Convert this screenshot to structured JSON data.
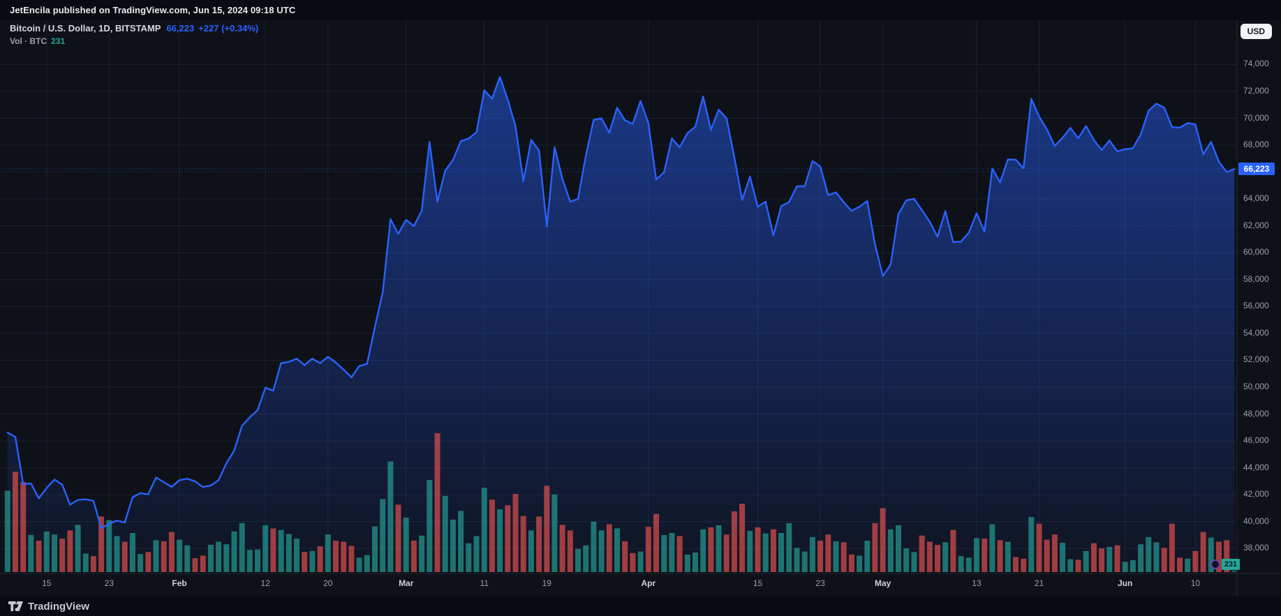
{
  "attribution_bar": {
    "text": "JetEncila published on TradingView.com, Jun 15, 2024 09:18 UTC"
  },
  "header": {
    "symbol_title": "Bitcoin / U.S. Dollar, 1D, BITSTAMP",
    "last_price": "66,223",
    "change": "+227 (+0.34%)",
    "volume_label": "Vol · BTC",
    "volume_value": "231"
  },
  "axis": {
    "currency_button": "USD",
    "price_badge": "66,223",
    "volume_badge": "231"
  },
  "footer": {
    "brand": "TradingView"
  },
  "colors": {
    "accent": "#2962ff",
    "vol_up": "#26a69a",
    "vol_down": "#ef5350",
    "chart_bg": "#0e1118",
    "bar_bg": "#090b10",
    "grid": "#1c2230",
    "separator": "#232836",
    "axis_text": "#9ba1ab",
    "title_text": "#d5d8dd",
    "vol_badge_text": "#06231f",
    "bubble_ring": "#6f42c1"
  },
  "chart_data": {
    "type": "line",
    "title": "Bitcoin / U.S. Dollar, 1D, BITSTAMP",
    "xlabel": "date",
    "ylabel": "USD",
    "ylim": [
      36100,
      77300
    ],
    "grid": true,
    "legend_position": "none",
    "y_ticks": [
      74000,
      72000,
      70000,
      68000,
      66000,
      64000,
      62000,
      60000,
      58000,
      56000,
      54000,
      52000,
      50000,
      48000,
      46000,
      44000,
      42000,
      40000,
      38000
    ],
    "x_ticks": [
      {
        "label": "15",
        "index": 5
      },
      {
        "label": "23",
        "index": 13
      },
      {
        "label": "Feb",
        "index": 22
      },
      {
        "label": "12",
        "index": 33
      },
      {
        "label": "20",
        "index": 41
      },
      {
        "label": "Mar",
        "index": 51
      },
      {
        "label": "11",
        "index": 61
      },
      {
        "label": "19",
        "index": 69
      },
      {
        "label": "Apr",
        "index": 82
      },
      {
        "label": "15",
        "index": 96
      },
      {
        "label": "23",
        "index": 104
      },
      {
        "label": "May",
        "index": 112
      },
      {
        "label": "13",
        "index": 124
      },
      {
        "label": "21",
        "index": 132
      },
      {
        "label": "Jun",
        "index": 143
      },
      {
        "label": "10",
        "index": 152
      }
    ],
    "dates": [
      "2024-01-10",
      "2024-01-11",
      "2024-01-12",
      "2024-01-13",
      "2024-01-14",
      "2024-01-15",
      "2024-01-16",
      "2024-01-17",
      "2024-01-18",
      "2024-01-19",
      "2024-01-20",
      "2024-01-21",
      "2024-01-22",
      "2024-01-23",
      "2024-01-24",
      "2024-01-25",
      "2024-01-26",
      "2024-01-27",
      "2024-01-28",
      "2024-01-29",
      "2024-01-30",
      "2024-01-31",
      "2024-02-01",
      "2024-02-02",
      "2024-02-03",
      "2024-02-04",
      "2024-02-05",
      "2024-02-06",
      "2024-02-07",
      "2024-02-08",
      "2024-02-09",
      "2024-02-10",
      "2024-02-11",
      "2024-02-12",
      "2024-02-13",
      "2024-02-14",
      "2024-02-15",
      "2024-02-16",
      "2024-02-17",
      "2024-02-18",
      "2024-02-19",
      "2024-02-20",
      "2024-02-21",
      "2024-02-22",
      "2024-02-23",
      "2024-02-24",
      "2024-02-25",
      "2024-02-26",
      "2024-02-27",
      "2024-02-28",
      "2024-02-29",
      "2024-03-01",
      "2024-03-02",
      "2024-03-03",
      "2024-03-04",
      "2024-03-05",
      "2024-03-06",
      "2024-03-07",
      "2024-03-08",
      "2024-03-09",
      "2024-03-10",
      "2024-03-11",
      "2024-03-12",
      "2024-03-13",
      "2024-03-14",
      "2024-03-15",
      "2024-03-16",
      "2024-03-17",
      "2024-03-18",
      "2024-03-19",
      "2024-03-20",
      "2024-03-21",
      "2024-03-22",
      "2024-03-23",
      "2024-03-24",
      "2024-03-25",
      "2024-03-26",
      "2024-03-27",
      "2024-03-28",
      "2024-03-29",
      "2024-03-30",
      "2024-03-31",
      "2024-04-01",
      "2024-04-02",
      "2024-04-03",
      "2024-04-04",
      "2024-04-05",
      "2024-04-06",
      "2024-04-07",
      "2024-04-08",
      "2024-04-09",
      "2024-04-10",
      "2024-04-11",
      "2024-04-12",
      "2024-04-13",
      "2024-04-14",
      "2024-04-15",
      "2024-04-16",
      "2024-04-17",
      "2024-04-18",
      "2024-04-19",
      "2024-04-20",
      "2024-04-21",
      "2024-04-22",
      "2024-04-23",
      "2024-04-24",
      "2024-04-25",
      "2024-04-26",
      "2024-04-27",
      "2024-04-28",
      "2024-04-29",
      "2024-04-30",
      "2024-05-01",
      "2024-05-02",
      "2024-05-03",
      "2024-05-04",
      "2024-05-05",
      "2024-05-06",
      "2024-05-07",
      "2024-05-08",
      "2024-05-09",
      "2024-05-10",
      "2024-05-11",
      "2024-05-12",
      "2024-05-13",
      "2024-05-14",
      "2024-05-15",
      "2024-05-16",
      "2024-05-17",
      "2024-05-18",
      "2024-05-19",
      "2024-05-20",
      "2024-05-21",
      "2024-05-22",
      "2024-05-23",
      "2024-05-24",
      "2024-05-25",
      "2024-05-26",
      "2024-05-27",
      "2024-05-28",
      "2024-05-29",
      "2024-05-30",
      "2024-05-31",
      "2024-06-01",
      "2024-06-02",
      "2024-06-03",
      "2024-06-04",
      "2024-06-05",
      "2024-06-06",
      "2024-06-07",
      "2024-06-08",
      "2024-06-09",
      "2024-06-10",
      "2024-06-11",
      "2024-06-12",
      "2024-06-13",
      "2024-06-14",
      "2024-06-15"
    ],
    "series": [
      {
        "name": "BTC/USD close",
        "type": "line",
        "values": [
          46627,
          46303,
          42782,
          42842,
          41732,
          42500,
          43132,
          42742,
          41261,
          41618,
          41665,
          41545,
          39507,
          39845,
          40077,
          39936,
          41811,
          42120,
          42031,
          43288,
          42941,
          42580,
          43082,
          43194,
          42995,
          42575,
          42687,
          43084,
          44339,
          45288,
          47132,
          47751,
          48294,
          49958,
          49742,
          51795,
          51880,
          52124,
          51642,
          52122,
          51779,
          52268,
          51839,
          51304,
          50731,
          51571,
          51733,
          54476,
          57037,
          62504,
          61403,
          62440,
          61977,
          63113,
          68245,
          63801,
          66082,
          66902,
          68300,
          68498,
          68955,
          72078,
          71452,
          73072,
          71388,
          69403,
          65315,
          68390,
          67609,
          61937,
          67840,
          65501,
          63796,
          63990,
          67209,
          69880,
          69988,
          68928,
          70780,
          69850,
          69582,
          71280,
          69649,
          65446,
          65980,
          68508,
          67837,
          68896,
          69360,
          71620,
          69140,
          70631,
          70006,
          67116,
          63924,
          65661,
          63419,
          63793,
          61277,
          63470,
          63766,
          64940,
          64941,
          66819,
          66410,
          64276,
          64485,
          63755,
          63115,
          63419,
          63841,
          60637,
          58254,
          59123,
          62889,
          63892,
          64012,
          63165,
          62312,
          61187,
          63094,
          60792,
          60825,
          61483,
          62940,
          61577,
          66267,
          65231,
          66940,
          66916,
          66278,
          71446,
          70136,
          69163,
          67939,
          68549,
          69285,
          68518,
          69424,
          68384,
          67635,
          68350,
          67540,
          67707,
          67766,
          68804,
          70567,
          71082,
          70790,
          69344,
          69302,
          69648,
          69540,
          67315,
          68244,
          66766,
          65996,
          66223
        ]
      },
      {
        "name": "Volume BTC",
        "type": "bar",
        "values": [
          15800,
          19500,
          17500,
          7200,
          6100,
          7900,
          7300,
          6500,
          8100,
          9200,
          3600,
          3100,
          10800,
          10100,
          7000,
          5900,
          7600,
          3500,
          3900,
          6200,
          6000,
          7800,
          6300,
          5200,
          2700,
          3200,
          5300,
          5900,
          5400,
          7900,
          9500,
          4300,
          4400,
          9100,
          8500,
          8200,
          7400,
          6500,
          3900,
          4100,
          5000,
          7300,
          6100,
          5900,
          5100,
          2800,
          3300,
          8900,
          14200,
          21500,
          13100,
          10600,
          6100,
          7100,
          17900,
          27000,
          14800,
          10200,
          11900,
          5600,
          7000,
          16400,
          14100,
          12200,
          13000,
          15200,
          10900,
          8100,
          10800,
          16800,
          15100,
          9200,
          8100,
          4500,
          5200,
          9800,
          8100,
          9300,
          8500,
          6000,
          3700,
          4000,
          8800,
          11300,
          7200,
          7600,
          7000,
          3400,
          3800,
          8300,
          8700,
          9100,
          7300,
          11800,
          13300,
          8000,
          8700,
          7500,
          8300,
          7600,
          9500,
          4700,
          4000,
          6800,
          6100,
          7300,
          6000,
          5800,
          3400,
          3200,
          6100,
          9500,
          12400,
          8300,
          9100,
          4600,
          3900,
          7100,
          5900,
          5300,
          5800,
          8200,
          3100,
          2800,
          6600,
          6500,
          9300,
          6200,
          5900,
          2900,
          2600,
          10700,
          9400,
          6300,
          7300,
          5700,
          2500,
          2400,
          4100,
          5600,
          4600,
          4900,
          5200,
          2000,
          2300,
          5400,
          6800,
          5800,
          4700,
          9400,
          2800,
          2600,
          4100,
          7800,
          6700,
          5900,
          6200,
          231
        ]
      }
    ]
  }
}
